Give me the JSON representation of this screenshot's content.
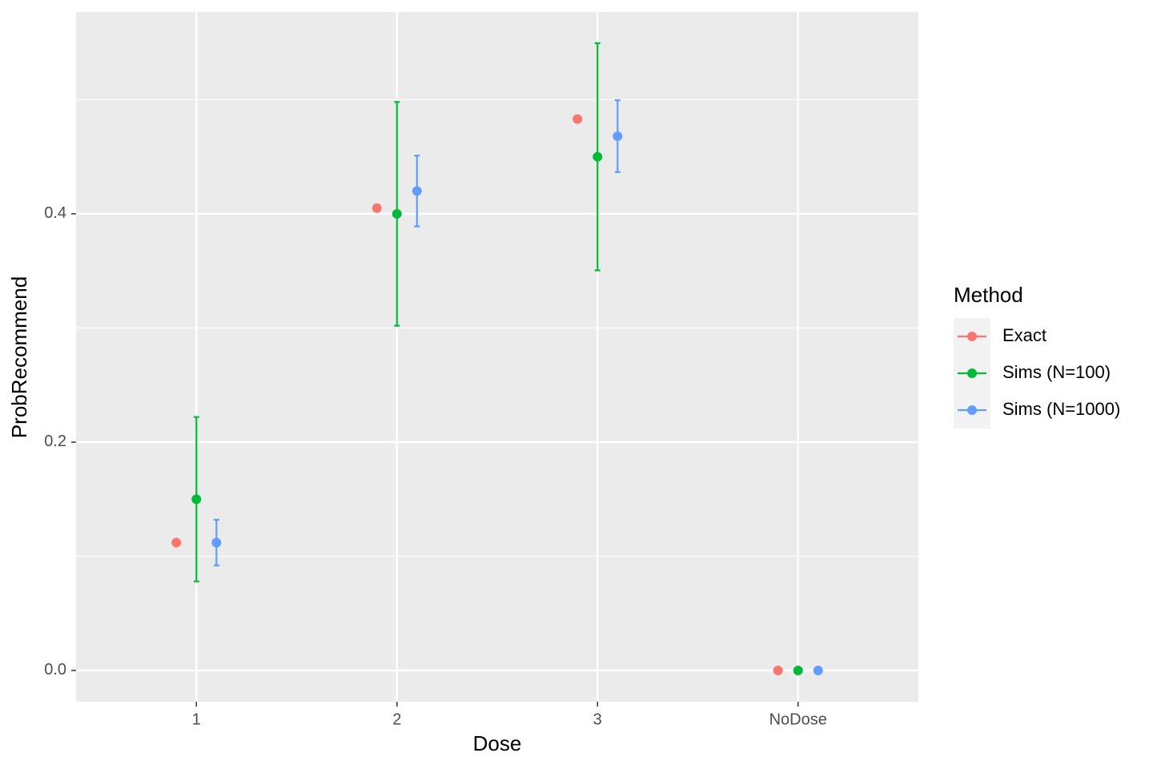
{
  "chart_data": {
    "type": "dodged-pointrange",
    "x_label": "Dose",
    "y_label": "ProbRecommend",
    "categories": [
      "1",
      "2",
      "3",
      "NoDose"
    ],
    "series": [
      {
        "name": "Exact",
        "color": "#F8766D",
        "values": [
          0.112,
          0.405,
          0.483,
          0
        ],
        "errors": [
          null,
          null,
          null,
          null
        ]
      },
      {
        "name": "Sims (N=100)",
        "color": "#00BA38",
        "values": [
          0.15,
          0.4,
          0.45,
          0
        ],
        "errors": [
          0.072,
          0.098,
          0.0995,
          null
        ]
      },
      {
        "name": "Sims (N=1000)",
        "color": "#619CFF",
        "values": [
          0.112,
          0.42,
          0.468,
          0
        ],
        "errors": [
          0.02,
          0.031,
          0.0315,
          null
        ]
      }
    ],
    "ylim": [
      -0.0274,
      0.5768
    ],
    "yticks": [
      {
        "value": 0,
        "label": "0.0"
      },
      {
        "value": 0.2,
        "label": "0.2"
      },
      {
        "value": 0.4,
        "label": "0.4"
      }
    ],
    "yminor": [
      0.1,
      0.3,
      0.5
    ],
    "grid": true,
    "legend_title": "Method",
    "legend_position": "right"
  }
}
